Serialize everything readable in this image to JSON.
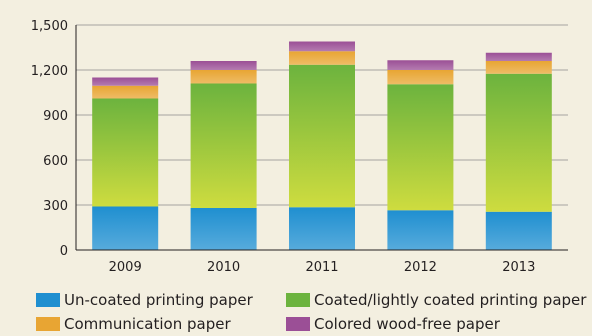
{
  "chart_data": {
    "type": "bar",
    "stacked": true,
    "categories": [
      "2009",
      "2010",
      "2011",
      "2012",
      "2013"
    ],
    "series": [
      {
        "name": "Un-coated printing paper",
        "values": [
          290,
          280,
          285,
          265,
          255
        ],
        "color": "#1f8fd0"
      },
      {
        "name": "Coated/lightly coated printing paper",
        "values": [
          720,
          830,
          950,
          840,
          920
        ],
        "color": "#6cb33e"
      },
      {
        "name": "Communication paper",
        "values": [
          85,
          90,
          90,
          95,
          85
        ],
        "color": "#e8a533"
      },
      {
        "name": "Colored wood-free paper",
        "values": [
          55,
          60,
          65,
          65,
          55
        ],
        "color": "#9b4f96"
      }
    ],
    "yticks": [
      "0",
      "300",
      "600",
      "900",
      "1,200",
      "1,500"
    ],
    "ylim": [
      0,
      1500
    ],
    "grid": true,
    "legend_position": "bottom",
    "title": "",
    "xlabel": "",
    "ylabel": ""
  }
}
